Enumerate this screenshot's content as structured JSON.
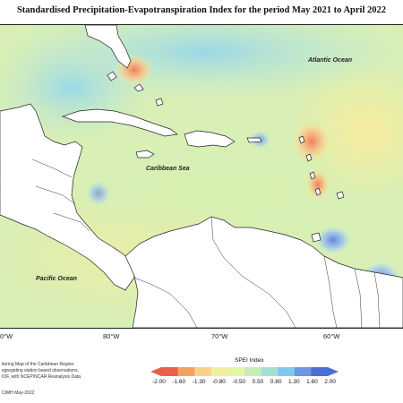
{
  "title": "Standardised Precipitation-Evapotranspiration Index for the period May 2021 to April 2022",
  "labels": {
    "atlantic": "Atlantic Ocean",
    "caribbean": "Caribbean Sea",
    "pacific": "Pacific Ocean"
  },
  "longitudes": [
    "0°W",
    "80°W",
    "70°W",
    "60°W"
  ],
  "credit": {
    "line1": "itoring Map of the Caribbean Region.",
    "line2": "egregating station based observations,",
    "line3": "IOF, with NCEP/NCAR Reanalysis Data",
    "line4": "CIMH May-2022"
  },
  "legend": {
    "title": "SPEI Index",
    "ticks": [
      "-2.00",
      "-1.60",
      "-1.30",
      "-0.80",
      "-0.50",
      "0.50",
      "0.80",
      "1.30",
      "1.60",
      "2.00"
    ],
    "colors": [
      "#e8604a",
      "#f4a261",
      "#f7d28a",
      "#f2ef9e",
      "#e6f5a8",
      "#c8ecbc",
      "#a4e0d6",
      "#7fc9ee",
      "#6c98e6",
      "#4c6fd6"
    ]
  }
}
